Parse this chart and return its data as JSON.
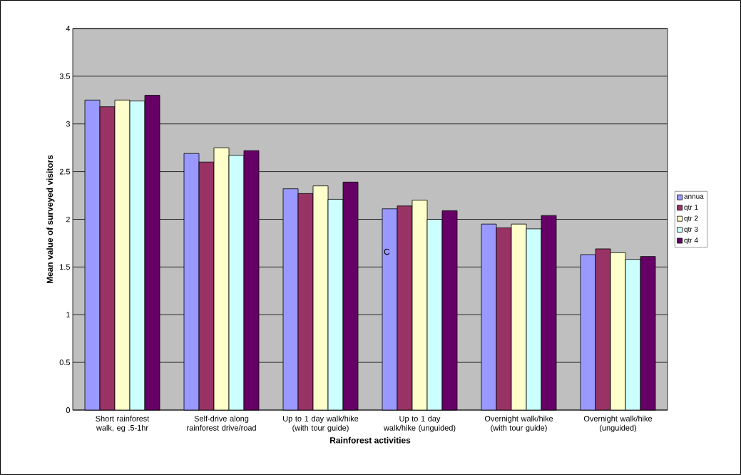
{
  "chart_data": {
    "type": "bar",
    "xlabel": "Rainforest activities",
    "ylabel": "Mean value of surveyed visitors",
    "categories": [
      "Short rainforest walk, eg .5-1hr",
      "Self-drive along rainforest drive/road",
      "Up to 1 day walk/hike (with tour guide)",
      "Up to 1 day walk/hike (unguided)",
      "Overnight walk/hike (with tour guide)",
      "Overnight walk/hike (unguided)"
    ],
    "series": [
      {
        "name": "annua",
        "color": "#9999ff",
        "values": [
          3.25,
          2.69,
          2.32,
          2.11,
          1.95,
          1.63
        ]
      },
      {
        "name": "qtr 1",
        "color": "#993366",
        "values": [
          3.18,
          2.6,
          2.27,
          2.14,
          1.91,
          1.69
        ]
      },
      {
        "name": "qtr 2",
        "color": "#ffffcc",
        "values": [
          3.25,
          2.75,
          2.35,
          2.2,
          1.95,
          1.65
        ]
      },
      {
        "name": "qtr 3",
        "color": "#ccffff",
        "values": [
          3.24,
          2.67,
          2.21,
          2.0,
          1.9,
          1.58
        ]
      },
      {
        "name": "qtr 4",
        "color": "#660066",
        "values": [
          3.3,
          2.72,
          2.39,
          2.09,
          2.04,
          1.61
        ]
      }
    ],
    "ylim": [
      0,
      4
    ],
    "yticks": [
      0,
      0.5,
      1,
      1.5,
      2,
      2.5,
      3,
      3.5,
      4
    ],
    "grid": "y",
    "legend": "right",
    "annotations": [
      "C"
    ]
  }
}
